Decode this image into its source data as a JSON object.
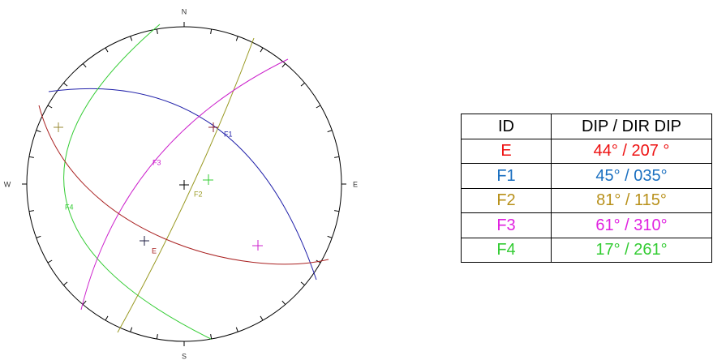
{
  "compass": {
    "north": "N",
    "south": "S",
    "west": "W",
    "east": "E"
  },
  "net_labels": [
    "F1",
    "F2",
    "F3",
    "F4",
    "E"
  ],
  "table": {
    "header": [
      "ID",
      "DIP / DIR DIP"
    ],
    "rows": [
      {
        "id": "E",
        "dip": "44° / 207 °",
        "color": "#ee1111"
      },
      {
        "id": "F1",
        "dip": "45° / 035°",
        "color": "#1a6fc0"
      },
      {
        "id": "F2",
        "dip": "81° / 115°",
        "color": "#b8901a"
      },
      {
        "id": "F3",
        "dip": "61° / 310°",
        "color": "#e020e0"
      },
      {
        "id": "F4",
        "dip": "17° / 261°",
        "color": "#33cc33"
      }
    ]
  }
}
